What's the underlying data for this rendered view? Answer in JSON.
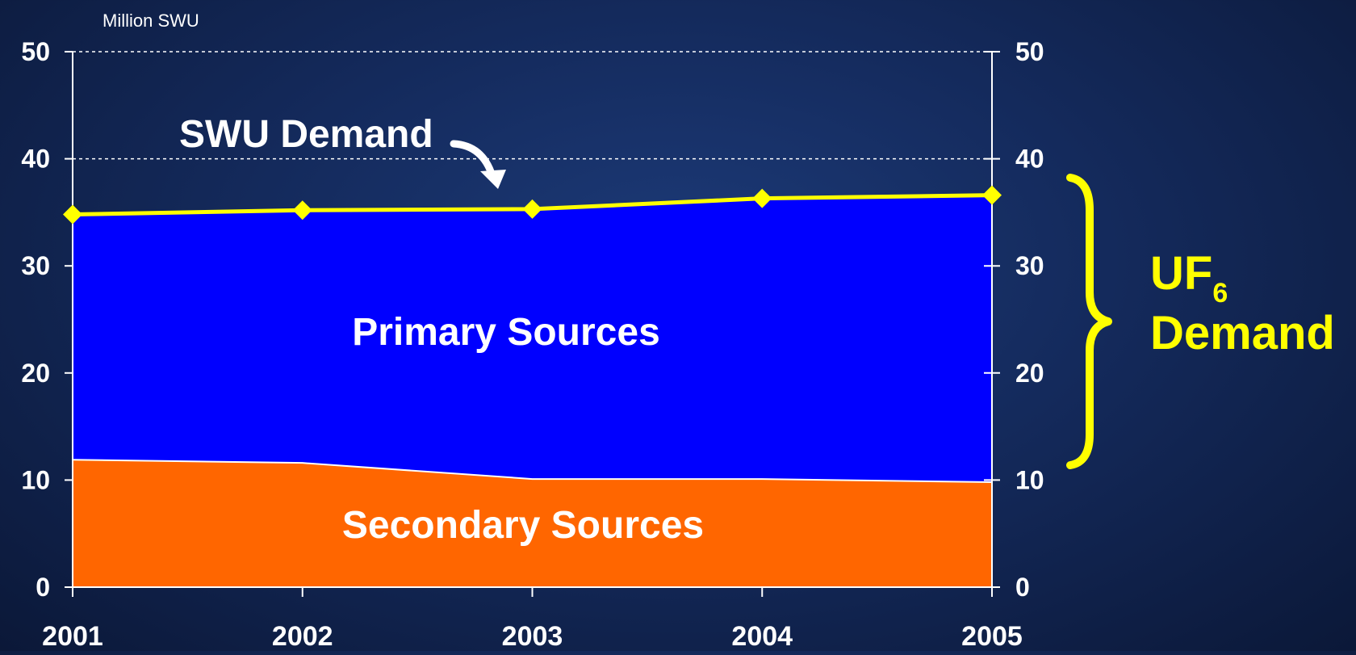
{
  "chart_data": {
    "type": "area",
    "unit_label": "Million SWU",
    "x": [
      "2001",
      "2002",
      "2003",
      "2004",
      "2005"
    ],
    "ylim": [
      0,
      50
    ],
    "y_ticks": [
      "0",
      "10",
      "20",
      "30",
      "40",
      "50"
    ],
    "series": [
      {
        "name": "Secondary Sources",
        "kind": "stacked-area",
        "values": [
          11.9,
          11.6,
          10.1,
          10.1,
          9.8
        ],
        "color": "#ff6600"
      },
      {
        "name": "Primary Sources",
        "kind": "stacked-area",
        "values": [
          22.9,
          23.6,
          25.2,
          26.2,
          26.8
        ],
        "color": "#0000ff"
      },
      {
        "name": "SWU Demand",
        "kind": "line",
        "values": [
          34.8,
          35.2,
          35.3,
          36.3,
          36.6
        ],
        "color": "#ffff00"
      }
    ],
    "grid": {
      "dashed_lines_at": [
        40,
        50
      ]
    },
    "annotations": {
      "swu_demand": "SWU Demand",
      "primary": "Primary Sources",
      "secondary": "Secondary Sources",
      "uf6_main": "UF",
      "uf6_sub": "6",
      "uf6_demand": "Demand"
    },
    "annotation_color": "#ffff00"
  }
}
